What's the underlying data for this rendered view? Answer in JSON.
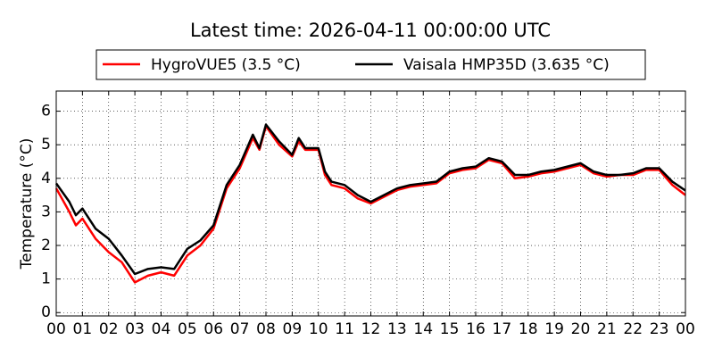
{
  "chart_data": {
    "type": "line",
    "title": "Latest time: 2026-04-11 00:00:00 UTC",
    "y_label": "Temperature (°C)",
    "x": [
      0,
      0.5,
      0.75,
      1,
      1.5,
      2,
      2.5,
      3,
      3.5,
      4,
      4.5,
      5,
      5.5,
      6,
      6.5,
      7,
      7.5,
      7.75,
      8,
      8.5,
      9,
      9.25,
      9.5,
      10,
      10.25,
      10.5,
      11,
      11.5,
      12,
      12.5,
      13,
      13.5,
      14,
      14.5,
      15,
      15.5,
      16,
      16.5,
      17,
      17.5,
      18,
      18.5,
      19,
      19.5,
      20,
      20.5,
      21,
      21.5,
      22,
      22.5,
      23,
      23.5,
      24
    ],
    "series": [
      {
        "name": "HygroVUE5 (3.5 °C)",
        "color": "#ff0000",
        "values": [
          3.7,
          3.0,
          2.6,
          2.8,
          2.2,
          1.8,
          1.5,
          0.9,
          1.1,
          1.2,
          1.1,
          1.7,
          2.0,
          2.5,
          3.7,
          4.3,
          5.2,
          4.85,
          5.55,
          5.0,
          4.65,
          5.1,
          4.85,
          4.85,
          4.1,
          3.8,
          3.7,
          3.4,
          3.25,
          3.45,
          3.65,
          3.75,
          3.8,
          3.85,
          4.15,
          4.25,
          4.3,
          4.55,
          4.45,
          4.0,
          4.05,
          4.15,
          4.2,
          4.3,
          4.4,
          4.15,
          4.05,
          4.1,
          4.1,
          4.25,
          4.25,
          3.8,
          3.5
        ]
      },
      {
        "name": "Vaisala HMP35D (3.635 °C)",
        "color": "#000000",
        "values": [
          3.85,
          3.3,
          2.9,
          3.1,
          2.5,
          2.2,
          1.7,
          1.15,
          1.3,
          1.35,
          1.3,
          1.9,
          2.15,
          2.6,
          3.8,
          4.4,
          5.3,
          4.9,
          5.6,
          5.1,
          4.7,
          5.2,
          4.9,
          4.9,
          4.2,
          3.9,
          3.8,
          3.5,
          3.3,
          3.5,
          3.7,
          3.8,
          3.85,
          3.9,
          4.2,
          4.3,
          4.35,
          4.6,
          4.5,
          4.1,
          4.1,
          4.2,
          4.25,
          4.35,
          4.45,
          4.2,
          4.1,
          4.1,
          4.15,
          4.3,
          4.3,
          3.9,
          3.635
        ]
      }
    ],
    "xlim": [
      0,
      24
    ],
    "xticks": [
      {
        "value": 0,
        "label": "00"
      },
      {
        "value": 1,
        "label": "01"
      },
      {
        "value": 2,
        "label": "02"
      },
      {
        "value": 3,
        "label": "03"
      },
      {
        "value": 4,
        "label": "04"
      },
      {
        "value": 5,
        "label": "05"
      },
      {
        "value": 6,
        "label": "06"
      },
      {
        "value": 7,
        "label": "07"
      },
      {
        "value": 8,
        "label": "08"
      },
      {
        "value": 9,
        "label": "09"
      },
      {
        "value": 10,
        "label": "10"
      },
      {
        "value": 11,
        "label": "11"
      },
      {
        "value": 12,
        "label": "12"
      },
      {
        "value": 13,
        "label": "13"
      },
      {
        "value": 14,
        "label": "14"
      },
      {
        "value": 15,
        "label": "15"
      },
      {
        "value": 16,
        "label": "16"
      },
      {
        "value": 17,
        "label": "17"
      },
      {
        "value": 18,
        "label": "18"
      },
      {
        "value": 19,
        "label": "19"
      },
      {
        "value": 20,
        "label": "20"
      },
      {
        "value": 21,
        "label": "21"
      },
      {
        "value": 22,
        "label": "22"
      },
      {
        "value": 23,
        "label": "23"
      },
      {
        "value": 24,
        "label": "00"
      }
    ],
    "ylim": [
      -0.1,
      6.6
    ],
    "yticks": [
      0,
      1,
      2,
      3,
      4,
      5,
      6
    ],
    "grid": true,
    "legend": "top"
  }
}
